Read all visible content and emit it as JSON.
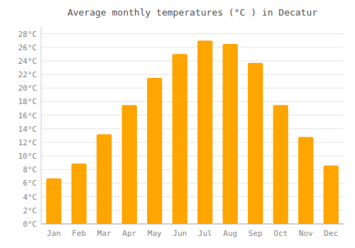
{
  "chart_data": {
    "type": "bar",
    "title": "Average monthly temperatures (°C ) in Decatur",
    "categories": [
      "Jan",
      "Feb",
      "Mar",
      "Apr",
      "May",
      "Jun",
      "Jul",
      "Aug",
      "Sep",
      "Oct",
      "Nov",
      "Dec"
    ],
    "values": [
      6.7,
      8.9,
      13.2,
      17.5,
      21.5,
      25.0,
      27.0,
      26.5,
      23.7,
      17.5,
      12.8,
      8.6
    ],
    "color": "#FFA500",
    "ylim": [
      0,
      29
    ],
    "yticks": [
      {
        "value": 0,
        "label": "0°C"
      },
      {
        "value": 2,
        "label": "2°C"
      },
      {
        "value": 4,
        "label": "4°C"
      },
      {
        "value": 6,
        "label": "6°C"
      },
      {
        "value": 8,
        "label": "8°C"
      },
      {
        "value": 10,
        "label": "10°C"
      },
      {
        "value": 12,
        "label": "12°C"
      },
      {
        "value": 14,
        "label": "14°C"
      },
      {
        "value": 16,
        "label": "16°C"
      },
      {
        "value": 18,
        "label": "18°C"
      },
      {
        "value": 20,
        "label": "20°C"
      },
      {
        "value": 22,
        "label": "22°C"
      },
      {
        "value": 24,
        "label": "24°C"
      },
      {
        "value": 26,
        "label": "26°C"
      },
      {
        "value": 28,
        "label": "28°C"
      }
    ],
    "grid": true
  }
}
